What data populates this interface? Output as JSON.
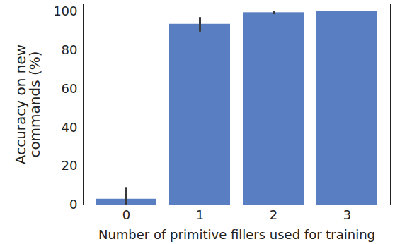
{
  "chart_data": {
    "type": "bar",
    "x_label": "Number of primitive fillers used for training",
    "y_label": "Accuracy on new\ncommands (%)",
    "categories": [
      "0",
      "1",
      "2",
      "3"
    ],
    "values": [
      3,
      93.5,
      99.5,
      100
    ],
    "error_low": [
      0,
      89.5,
      98.5,
      100
    ],
    "error_high": [
      9,
      97,
      100,
      100
    ],
    "color": "#5a7ec2",
    "ylim": [
      0,
      104
    ],
    "yticks": [
      0,
      20,
      40,
      60,
      80,
      100
    ],
    "grid": false
  }
}
